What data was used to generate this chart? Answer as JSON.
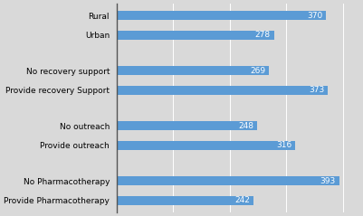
{
  "categories": [
    "Rural",
    "Urban",
    "No recovery support",
    "Provide recovery Support",
    "No outreach",
    "Provide outreach",
    "No Pharmacotherapy",
    "Provide Pharmacotherapy"
  ],
  "values": [
    370,
    278,
    269,
    373,
    248,
    316,
    393,
    242
  ],
  "bar_color": "#5b9bd5",
  "background_color": "#d9d9d9",
  "plot_bg_color": "#d9d9d9",
  "text_color": "#000000",
  "label_color": "#ffffff",
  "label_fontsize": 6.5,
  "category_fontsize": 6.5,
  "bar_height": 0.45,
  "xlim": [
    0,
    430
  ],
  "grid_color": "#ffffff",
  "grid_linewidth": 0.7,
  "spine_color": "#555555"
}
